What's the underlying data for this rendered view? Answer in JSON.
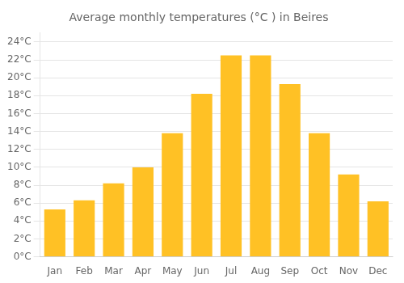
{
  "chart_data": {
    "type": "bar",
    "title": "Average monthly temperatures (°C ) in Beires",
    "categories": [
      "Jan",
      "Feb",
      "Mar",
      "Apr",
      "May",
      "Jun",
      "Jul",
      "Aug",
      "Sep",
      "Oct",
      "Nov",
      "Dec"
    ],
    "values": [
      5.3,
      6.3,
      8.2,
      10.0,
      13.8,
      18.2,
      22.5,
      22.5,
      19.3,
      13.8,
      9.2,
      6.2
    ],
    "color": "#FFC125",
    "ylim": [
      0,
      25
    ],
    "yticks": [
      {
        "value": 0,
        "label": "0°C"
      },
      {
        "value": 2,
        "label": "2°C"
      },
      {
        "value": 4,
        "label": "4°C"
      },
      {
        "value": 6,
        "label": "6°C"
      },
      {
        "value": 8,
        "label": "8°C"
      },
      {
        "value": 10,
        "label": "10°C"
      },
      {
        "value": 12,
        "label": "12°C"
      },
      {
        "value": 14,
        "label": "14°C"
      },
      {
        "value": 16,
        "label": "16°C"
      },
      {
        "value": 18,
        "label": "18°C"
      },
      {
        "value": 20,
        "label": "20°C"
      },
      {
        "value": 22,
        "label": "22°C"
      },
      {
        "value": 24,
        "label": "24°C"
      }
    ],
    "grid": true
  }
}
